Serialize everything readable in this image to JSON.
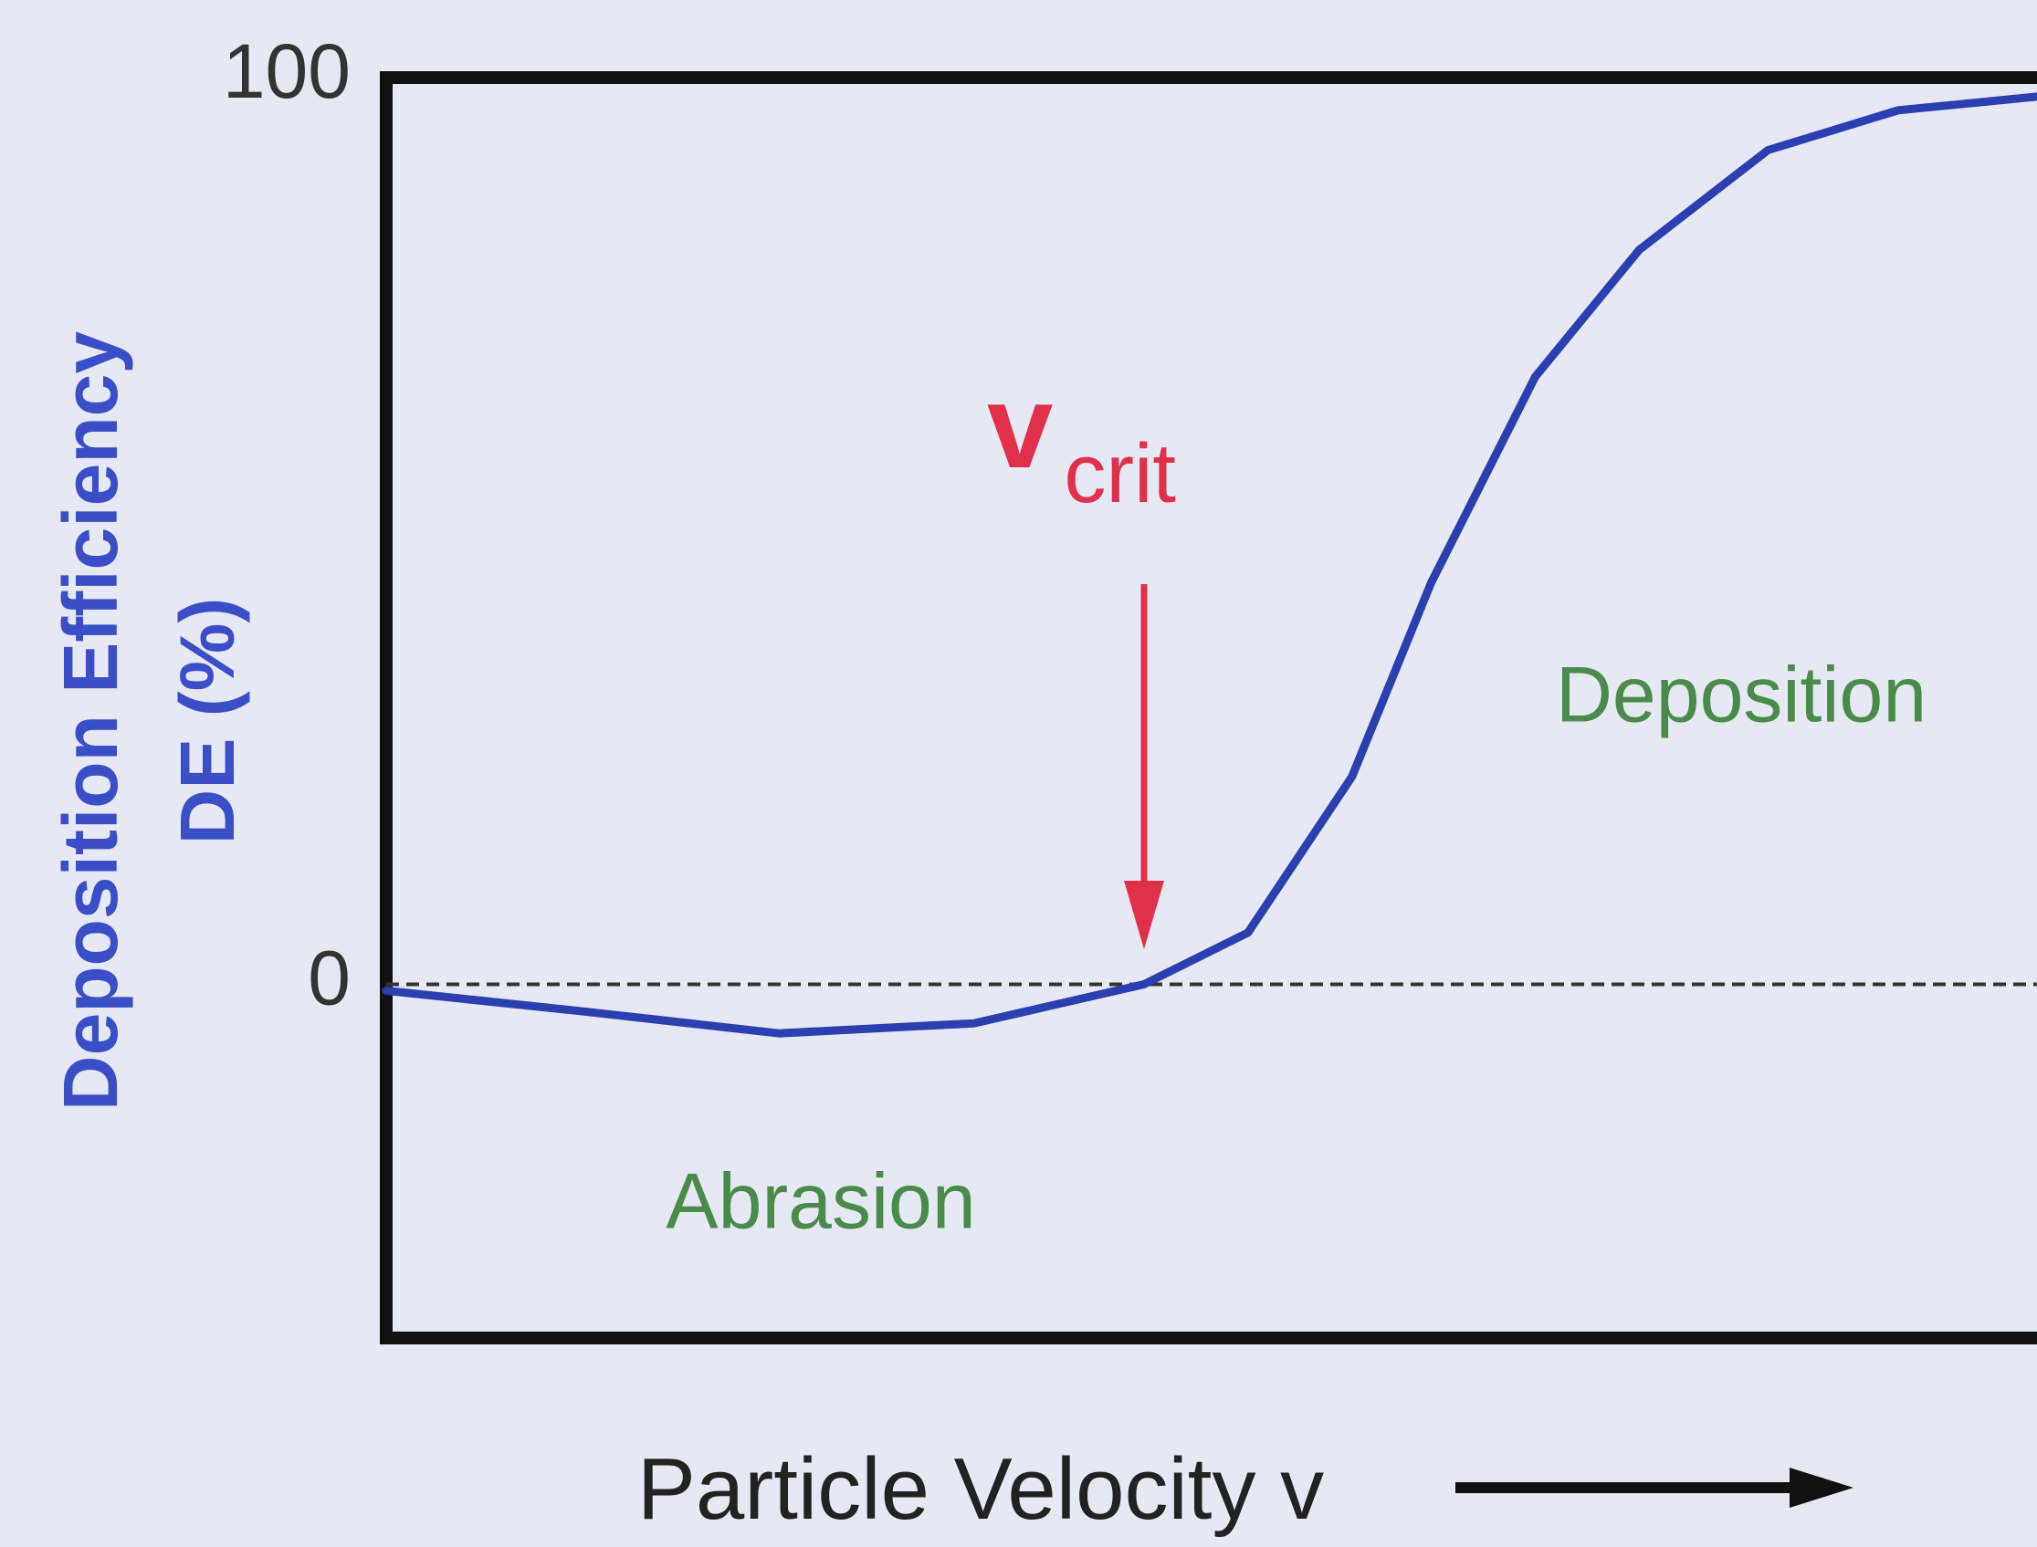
{
  "chart_data": {
    "type": "line",
    "ylabel": [
      "Deposition Efficiency",
      "DE (%)"
    ],
    "xlabel": "Particle Velocity v",
    "x": [
      0,
      0.12,
      0.238,
      0.356,
      0.459,
      0.522,
      0.585,
      0.633,
      0.696,
      0.759,
      0.837,
      0.916,
      1.0
    ],
    "values": [
      -0.7,
      -3,
      -5.4,
      -4.3,
      0,
      5.7,
      22.9,
      44.3,
      67,
      81,
      92,
      96.4,
      97.9
    ],
    "color": "#2b3fb0",
    "xlim": [
      0,
      1
    ],
    "ylim": [
      -39,
      100
    ],
    "yticks": [
      0,
      100
    ],
    "hlines": [
      0
    ],
    "annotations": {
      "vcrit": {
        "text": "v",
        "sub": "crit"
      },
      "deposition": "Deposition",
      "abrasion": "Abrasion"
    }
  }
}
